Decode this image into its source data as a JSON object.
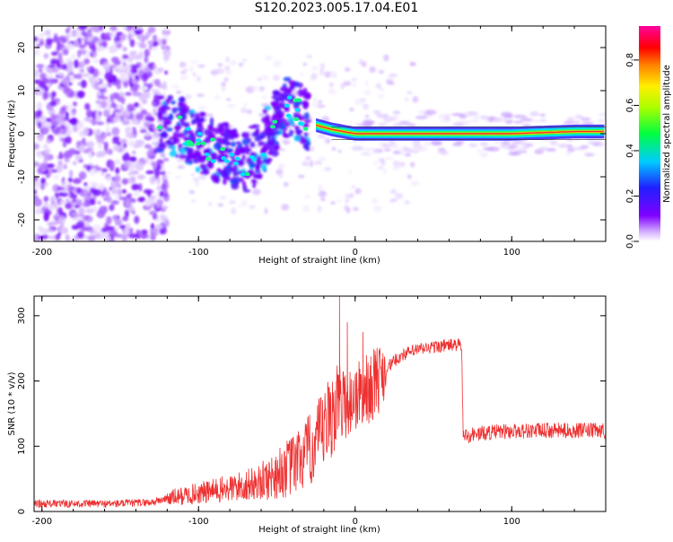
{
  "title": "S120.2023.005.17.04.E01",
  "colors": {
    "snr_line": "#ee3030",
    "spectrogram_ridge": "#ff3030"
  },
  "chart_data": [
    {
      "type": "heatmap",
      "xlabel": "Height of straight line (km)",
      "ylabel": "Frequency (Hz)",
      "xlim": [
        -205,
        160
      ],
      "ylim": [
        -25,
        25
      ],
      "xticks": [
        -200,
        -100,
        0,
        100
      ],
      "xtick_labels": [
        "-200",
        "-100",
        "0",
        "100"
      ],
      "yticks": [
        -20,
        -10,
        0,
        10,
        20
      ],
      "ytick_labels": [
        "-20",
        "-10",
        "0",
        "10",
        "20"
      ],
      "colorbar": {
        "label": "Normalized spectral amplitude",
        "colormap": "rainbow (purple→blue→cyan→green→yellow→orange→red→magenta)",
        "range": [
          0.0,
          0.95
        ],
        "ticks": [
          0.0,
          0.2,
          0.4,
          0.6,
          0.8
        ],
        "tick_labels": [
          "0.0",
          "0.2",
          "0.4",
          "0.6",
          "0.8"
        ]
      },
      "ridge": {
        "description": "narrow band of high amplitude near 0 Hz from about -20 km to 160 km",
        "x": [
          -25,
          -15,
          0,
          20,
          60,
          100,
          140,
          160
        ],
        "y": [
          2,
          1,
          0,
          0,
          0,
          0,
          0.5,
          0.5
        ]
      },
      "scattered_energy": {
        "description": "scattered noise patches across ±25 Hz below -140 km; blob cluster oscillating near 0 Hz between -125 and -20 km",
        "x_noise_range": [
          -205,
          -130
        ],
        "cluster_x": [
          -125,
          -110,
          -95,
          -80,
          -70,
          -60,
          -50,
          -40,
          -30
        ],
        "cluster_y": [
          2,
          1,
          -3,
          -5,
          -7,
          -3,
          3,
          7,
          2
        ]
      }
    },
    {
      "type": "line",
      "xlabel": "Height of straight line (km)",
      "ylabel": "SNR (10 * v/v)",
      "xlim": [
        -205,
        160
      ],
      "ylim": [
        0,
        330
      ],
      "xticks": [
        -200,
        -100,
        0,
        100
      ],
      "xtick_labels": [
        "-200",
        "-100",
        "0",
        "100"
      ],
      "yticks": [
        0,
        100,
        200,
        300
      ],
      "ytick_labels": [
        "0",
        "100",
        "200",
        "300"
      ],
      "series": [
        {
          "x": [
            -205,
            -180,
            -150,
            -130,
            -120,
            -100,
            -80,
            -60,
            -40,
            -30,
            -20,
            -15,
            -10,
            -5,
            0,
            10,
            20,
            30,
            40,
            50,
            60,
            68,
            69,
            75,
            90,
            110,
            130,
            150,
            160
          ],
          "y": [
            12,
            12,
            12,
            14,
            20,
            28,
            35,
            45,
            70,
            90,
            120,
            150,
            170,
            165,
            175,
            190,
            220,
            240,
            248,
            252,
            255,
            255,
            115,
            118,
            122,
            124,
            124,
            124,
            124
          ]
        }
      ],
      "spikes": {
        "x": [
          -10,
          -5,
          5,
          13
        ],
        "y": [
          330,
          290,
          275,
          240
        ]
      }
    }
  ]
}
